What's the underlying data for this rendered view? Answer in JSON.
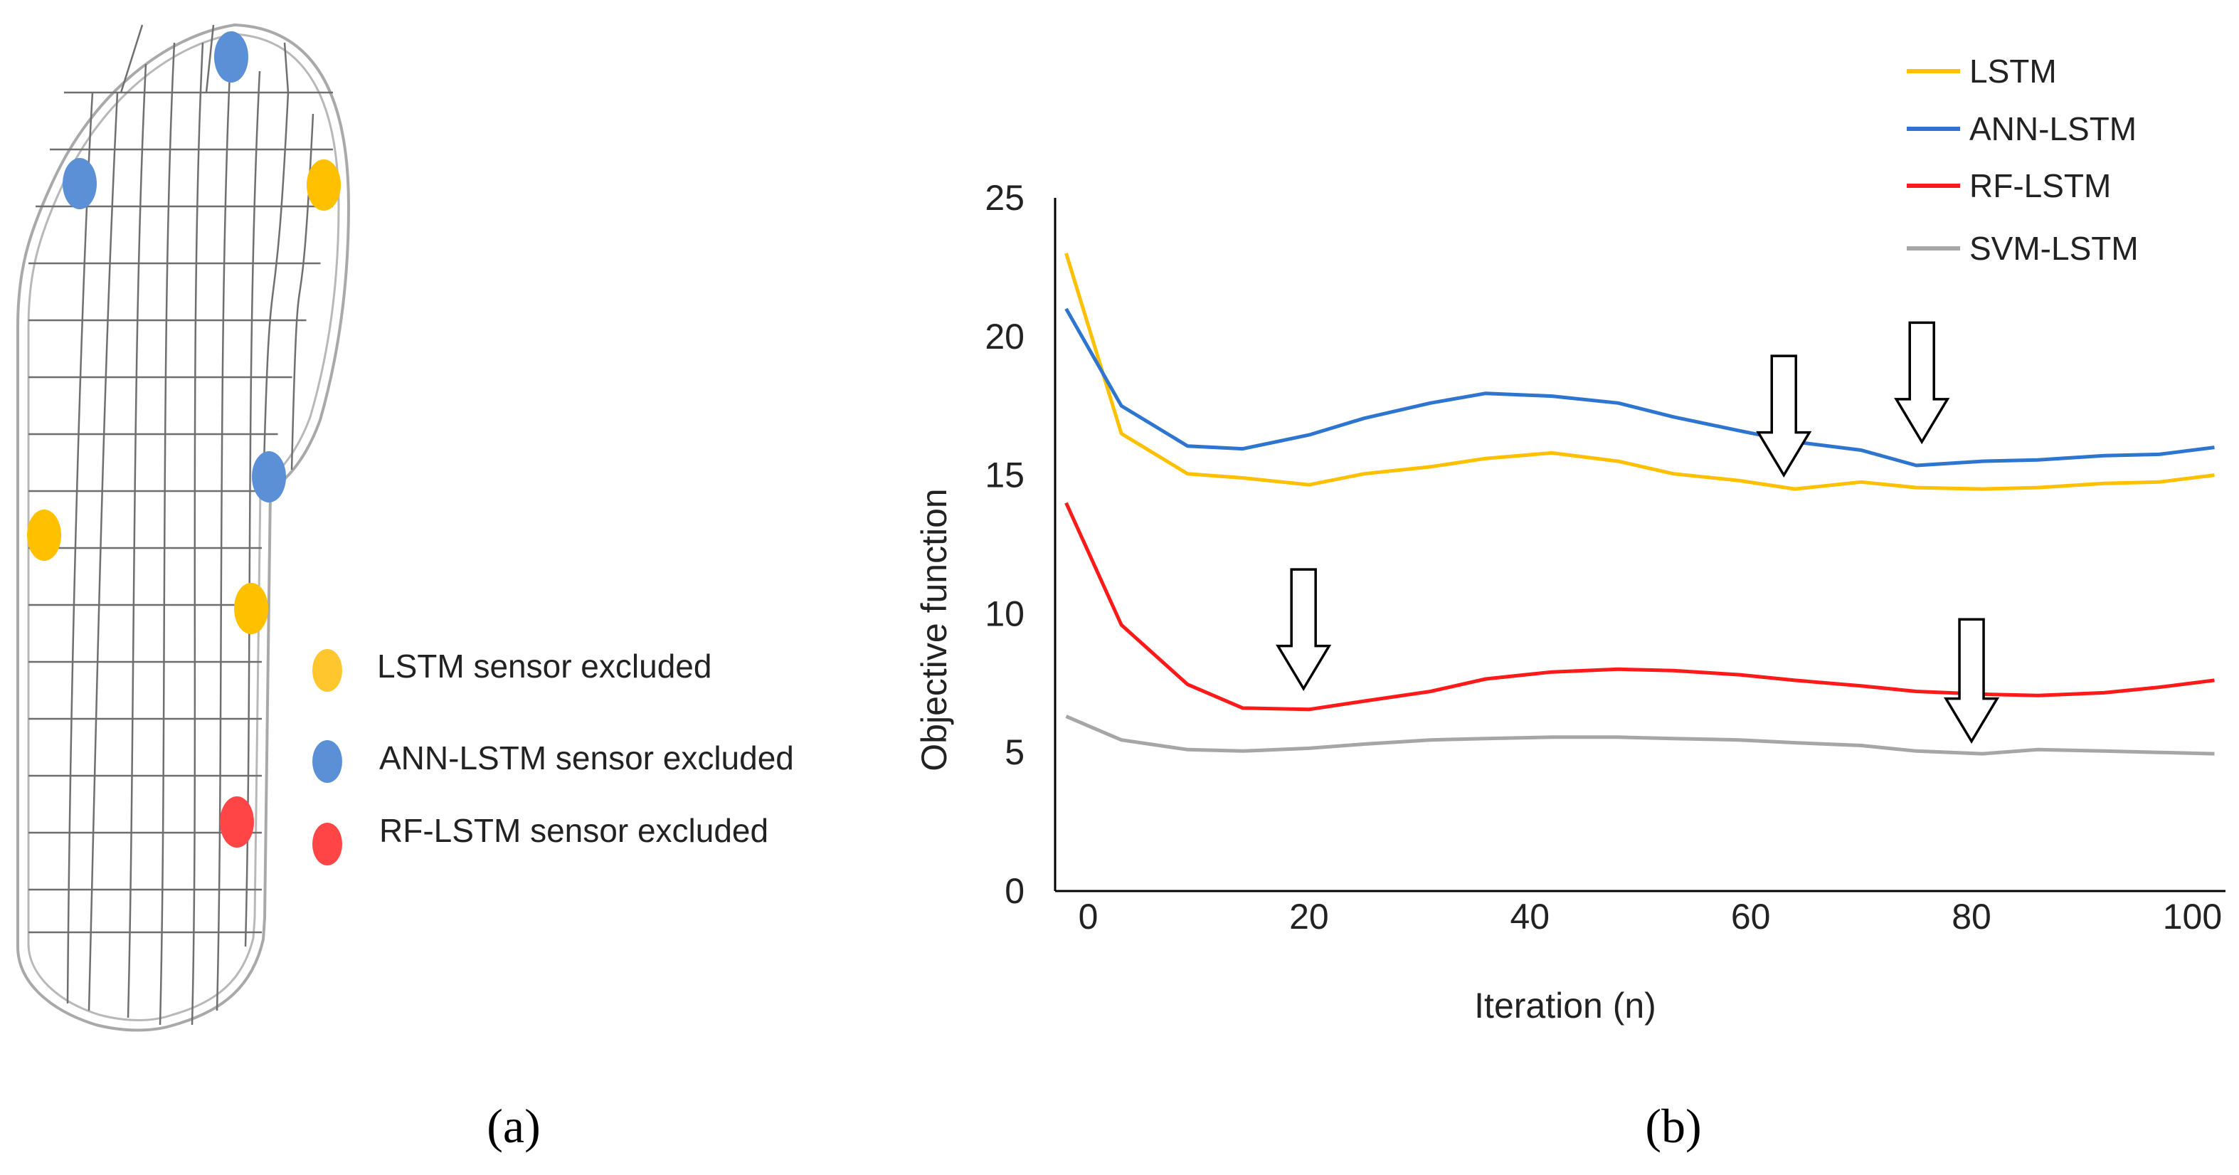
{
  "panel_a": {
    "caption": "(a)",
    "legend": [
      {
        "key": "lstm",
        "label": "LSTM sensor excluded",
        "color": "#FFC62E"
      },
      {
        "key": "ann",
        "label": "ANN-LSTM sensor excluded",
        "color": "#5B8FD6"
      },
      {
        "key": "rf",
        "label": "RF-LSTM sensor excluded",
        "color": "#FF4545"
      }
    ],
    "sensors": [
      {
        "excluded_by": "ann",
        "color": "#5B8FD6"
      },
      {
        "excluded_by": "ann",
        "color": "#5B8FD6"
      },
      {
        "excluded_by": "lstm",
        "color": "#FFC000"
      },
      {
        "excluded_by": "ann",
        "color": "#5B8FD6"
      },
      {
        "excluded_by": "lstm",
        "color": "#FFC000"
      },
      {
        "excluded_by": "lstm",
        "color": "#FFC000"
      },
      {
        "excluded_by": "rf",
        "color": "#FF4545"
      }
    ]
  },
  "panel_b": {
    "caption": "(b)"
  },
  "chart_data": {
    "type": "line",
    "title": "",
    "xlabel": "Iteration (n)",
    "ylabel": "Objective function",
    "xlim": [
      -3,
      103
    ],
    "ylim": [
      0,
      25
    ],
    "x_ticks": [
      0,
      20,
      40,
      60,
      80,
      100
    ],
    "y_ticks": [
      0,
      5,
      10,
      15,
      20,
      25
    ],
    "grid": false,
    "legend_position": "top-right",
    "series": [
      {
        "name": "LSTM",
        "color": "#FFC000",
        "x": [
          -2,
          3,
          9,
          14,
          20,
          25,
          31,
          36,
          42,
          48,
          53,
          59,
          64,
          70,
          75,
          81,
          86,
          92,
          97,
          102
        ],
        "y": [
          23.0,
          16.5,
          15.05,
          14.9,
          14.65,
          15.05,
          15.3,
          15.6,
          15.8,
          15.5,
          15.05,
          14.8,
          14.5,
          14.75,
          14.55,
          14.5,
          14.55,
          14.7,
          14.75,
          15.0
        ]
      },
      {
        "name": "ANN-LSTM",
        "color": "#2E75D0",
        "x": [
          -2,
          3,
          9,
          14,
          20,
          25,
          31,
          36,
          42,
          48,
          53,
          59,
          64,
          70,
          75,
          81,
          86,
          92,
          97,
          102
        ],
        "y": [
          21.0,
          17.5,
          16.05,
          15.95,
          16.45,
          17.05,
          17.6,
          17.95,
          17.85,
          17.6,
          17.1,
          16.6,
          16.2,
          15.9,
          15.35,
          15.5,
          15.55,
          15.7,
          15.75,
          16.0
        ]
      },
      {
        "name": "RF-LSTM",
        "color": "#FF1A1A",
        "x": [
          -2,
          3,
          9,
          14,
          20,
          25,
          31,
          36,
          42,
          48,
          53,
          59,
          64,
          70,
          75,
          81,
          86,
          92,
          97,
          102
        ],
        "y": [
          14.0,
          9.6,
          7.45,
          6.6,
          6.55,
          6.85,
          7.2,
          7.65,
          7.9,
          8.0,
          7.95,
          7.8,
          7.6,
          7.4,
          7.2,
          7.1,
          7.05,
          7.15,
          7.35,
          7.6
        ]
      },
      {
        "name": "SVM-LSTM",
        "color": "#A6A6A6",
        "x": [
          -2,
          3,
          9,
          14,
          20,
          25,
          31,
          36,
          42,
          48,
          53,
          59,
          64,
          70,
          75,
          81,
          86,
          92,
          97,
          102
        ],
        "y": [
          6.3,
          5.45,
          5.1,
          5.05,
          5.15,
          5.3,
          5.45,
          5.5,
          5.55,
          5.55,
          5.5,
          5.45,
          5.35,
          5.25,
          5.05,
          4.95,
          5.1,
          5.05,
          5.0,
          4.95
        ]
      }
    ],
    "annotations": [
      {
        "type": "arrow-down",
        "x": 63,
        "y_top": 19.3,
        "y_tip": 15.0,
        "target": "LSTM"
      },
      {
        "type": "arrow-down",
        "x": 75.5,
        "y_top": 20.5,
        "y_tip": 16.2,
        "target": "ANN-LSTM"
      },
      {
        "type": "arrow-down",
        "x": 19.5,
        "y_top": 11.6,
        "y_tip": 7.3,
        "target": "RF-LSTM"
      },
      {
        "type": "arrow-down",
        "x": 80,
        "y_top": 9.8,
        "y_tip": 5.4,
        "target": "SVM-LSTM"
      }
    ]
  }
}
